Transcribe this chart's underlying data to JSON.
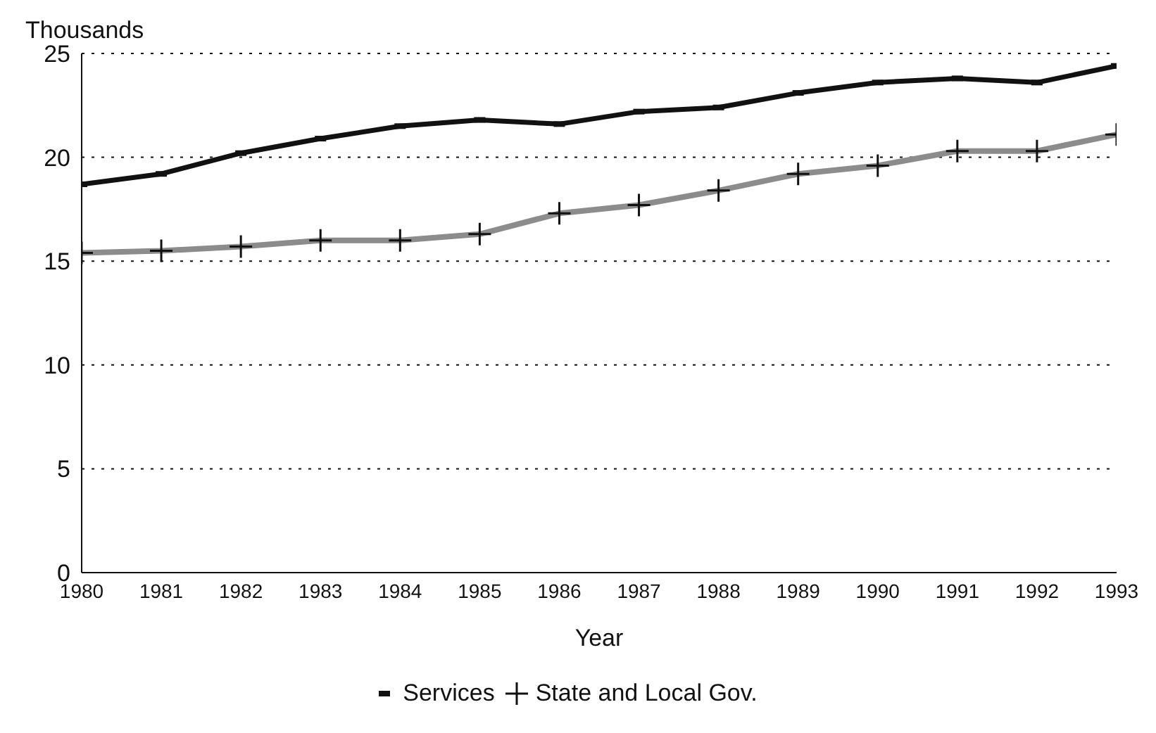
{
  "chart_data": {
    "type": "line",
    "ylabel": "Thousands",
    "xlabel": "Year",
    "x": [
      1980,
      1981,
      1982,
      1983,
      1984,
      1985,
      1986,
      1987,
      1988,
      1989,
      1990,
      1991,
      1992,
      1993
    ],
    "xlim": [
      1980,
      1993
    ],
    "xticks": [
      1980,
      1981,
      1982,
      1983,
      1984,
      1985,
      1986,
      1987,
      1988,
      1989,
      1990,
      1991,
      1992,
      1993
    ],
    "ylim": [
      0,
      25
    ],
    "yticks": [
      0,
      5,
      10,
      15,
      20,
      25
    ],
    "grid": "y",
    "legend": "bottom",
    "series": [
      {
        "name": "Services",
        "color": "#111111",
        "marker": "square",
        "values": [
          18.7,
          19.2,
          20.2,
          20.9,
          21.5,
          21.8,
          21.6,
          22.2,
          22.4,
          23.1,
          23.6,
          23.8,
          23.6,
          24.4
        ]
      },
      {
        "name": "State and Local Gov.",
        "color": "#8c8c8c",
        "marker": "cross",
        "values": [
          15.4,
          15.5,
          15.7,
          16.0,
          16.0,
          16.3,
          17.3,
          17.7,
          18.4,
          19.2,
          19.6,
          20.3,
          20.3,
          21.1
        ]
      }
    ]
  }
}
